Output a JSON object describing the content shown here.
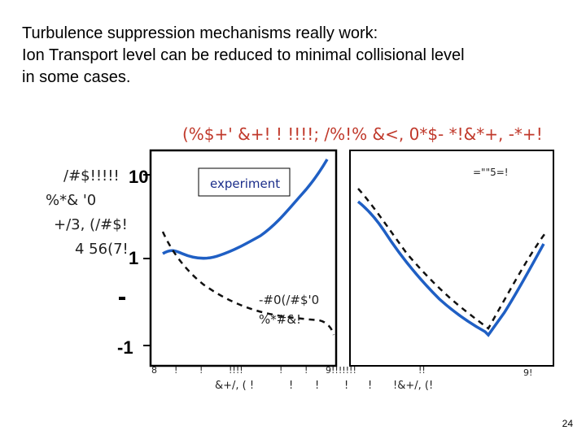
{
  "slide": {
    "header": {
      "line1": "Turbulence suppression mechanisms really work:",
      "line2": "Ion Transport level can be reduced to minimal collisional level",
      "line3": "in some cases."
    },
    "page_number": "24"
  },
  "figure": {
    "garbled_title": "(%$+' &+!  !  !!!!; /%!% &<, 0*$- *!&*+, -*+!",
    "left_axis_labels": [
      "/#$!!!!!",
      "%*& '0",
      "+/3, (/#$!",
      "4 56(7!"
    ],
    "y_ticks": [
      "10",
      "1",
      "-1"
    ],
    "legend_experiment": "experiment",
    "legend_right": "=\"\"5=!",
    "annotation_lines": [
      "-#0(/#$'0",
      "%*#&!"
    ],
    "bottom_row1": [
      "8",
      "!",
      "!",
      "!!!!",
      "!",
      "!",
      "9!!!!!!!",
      "!!",
      "9!"
    ],
    "bottom_row2": [
      "&+/, ( !",
      "!",
      "!",
      "!",
      "!",
      "!&+/, (!"
    ]
  },
  "colors": {
    "experiment_line": "#1f5fc4",
    "theory_line": "#111111",
    "glitch_text": "#c0392b"
  }
}
